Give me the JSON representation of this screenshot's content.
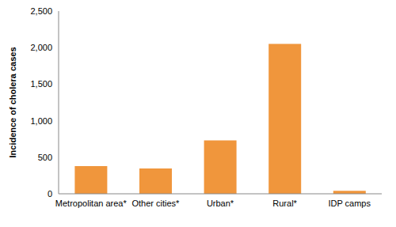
{
  "chart_data": {
    "type": "bar",
    "y_label": "Incidence of cholera cases",
    "categories": [
      "Metropolitan area*",
      "Other cities*",
      "Urban*",
      "Rural*",
      "IDP camps"
    ],
    "values": [
      380,
      345,
      730,
      2050,
      40
    ],
    "color": "#f0963c",
    "ylim": [
      0,
      2500
    ],
    "yticks": [
      0,
      500,
      {
        "value": 1000,
        "label": "1,000"
      },
      {
        "value": 1500,
        "label": "1,500"
      },
      {
        "value": 2000,
        "label": "2,000"
      },
      {
        "value": 2500,
        "label": "2,500"
      }
    ],
    "grid": false
  }
}
